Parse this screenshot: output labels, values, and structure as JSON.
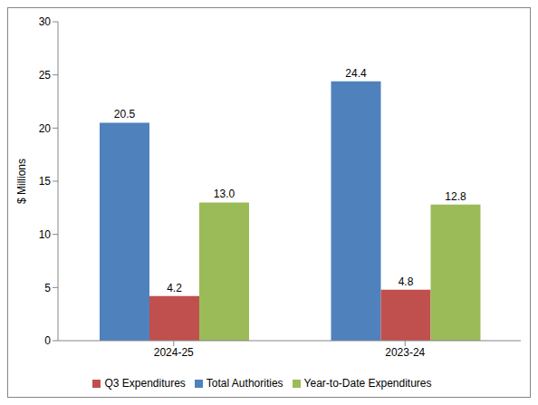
{
  "chart_data": {
    "type": "bar",
    "categories": [
      "2024-25",
      "2023-24"
    ],
    "series": [
      {
        "name": "Total Authorities",
        "color": "#4f81bd",
        "values": [
          20.5,
          24.4
        ],
        "value_labels": [
          "20.5",
          "24.4"
        ]
      },
      {
        "name": "Q3 Expenditures",
        "color": "#c0504d",
        "values": [
          4.2,
          4.8
        ],
        "value_labels": [
          "4.2",
          "4.8"
        ]
      },
      {
        "name": "Year-to-Date Expenditures",
        "color": "#9bbb59",
        "values": [
          13.0,
          12.8
        ],
        "value_labels": [
          "13.0",
          "12.8"
        ]
      }
    ],
    "y_label": "$ Millions",
    "ylim": [
      0,
      30
    ],
    "yticks": [
      0,
      5,
      10,
      15,
      20,
      25,
      30
    ],
    "data_labels": true,
    "legend": "bottom",
    "grid": false
  }
}
